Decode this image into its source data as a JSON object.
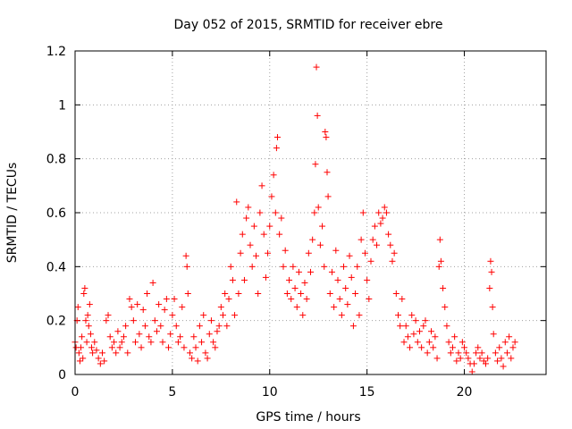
{
  "chart_data": {
    "type": "scatter",
    "title": "Day 052 of 2015, SRMTID for receiver ebre",
    "xlabel": "GPS time / hours",
    "ylabel": "SRMTID / TECUs",
    "xlim": [
      0,
      24.2
    ],
    "ylim": [
      0,
      1.2
    ],
    "xticks": [
      0,
      5,
      10,
      15,
      20
    ],
    "xtick_labels": [
      "0",
      "5",
      "10",
      "15",
      "20"
    ],
    "yticks": [
      0,
      0.2,
      0.4,
      0.6,
      0.8,
      1.0,
      1.2
    ],
    "ytick_labels": [
      "0",
      "0.2",
      "0.4",
      "0.6",
      "0.8",
      "1",
      "1.2"
    ],
    "grid": true,
    "marker": "plus",
    "marker_color": "#ff0000",
    "series": [
      {
        "name": "SRMTID",
        "points": [
          [
            0.0,
            0.12
          ],
          [
            0.05,
            0.1
          ],
          [
            0.1,
            0.2
          ],
          [
            0.15,
            0.25
          ],
          [
            0.2,
            0.08
          ],
          [
            0.25,
            0.05
          ],
          [
            0.3,
            0.1
          ],
          [
            0.35,
            0.14
          ],
          [
            0.4,
            0.06
          ],
          [
            0.45,
            0.3
          ],
          [
            0.5,
            0.32
          ],
          [
            0.55,
            0.2
          ],
          [
            0.6,
            0.12
          ],
          [
            0.65,
            0.22
          ],
          [
            0.7,
            0.18
          ],
          [
            0.75,
            0.26
          ],
          [
            0.8,
            0.15
          ],
          [
            0.85,
            0.1
          ],
          [
            0.9,
            0.08
          ],
          [
            1.0,
            0.12
          ],
          [
            1.1,
            0.09
          ],
          [
            1.2,
            0.06
          ],
          [
            1.3,
            0.04
          ],
          [
            1.4,
            0.08
          ],
          [
            1.5,
            0.05
          ],
          [
            1.6,
            0.2
          ],
          [
            1.7,
            0.22
          ],
          [
            1.8,
            0.14
          ],
          [
            1.9,
            0.1
          ],
          [
            2.0,
            0.12
          ],
          [
            2.1,
            0.08
          ],
          [
            2.2,
            0.16
          ],
          [
            2.3,
            0.1
          ],
          [
            2.4,
            0.12
          ],
          [
            2.5,
            0.14
          ],
          [
            2.6,
            0.18
          ],
          [
            2.7,
            0.08
          ],
          [
            2.8,
            0.28
          ],
          [
            2.9,
            0.25
          ],
          [
            3.0,
            0.2
          ],
          [
            3.1,
            0.12
          ],
          [
            3.2,
            0.26
          ],
          [
            3.3,
            0.15
          ],
          [
            3.4,
            0.1
          ],
          [
            3.5,
            0.24
          ],
          [
            3.6,
            0.18
          ],
          [
            3.7,
            0.3
          ],
          [
            3.8,
            0.14
          ],
          [
            3.9,
            0.12
          ],
          [
            4.0,
            0.34
          ],
          [
            4.1,
            0.2
          ],
          [
            4.2,
            0.16
          ],
          [
            4.3,
            0.26
          ],
          [
            4.4,
            0.18
          ],
          [
            4.5,
            0.12
          ],
          [
            4.6,
            0.24
          ],
          [
            4.7,
            0.28
          ],
          [
            4.8,
            0.1
          ],
          [
            4.9,
            0.15
          ],
          [
            5.0,
            0.22
          ],
          [
            5.1,
            0.28
          ],
          [
            5.2,
            0.18
          ],
          [
            5.3,
            0.12
          ],
          [
            5.4,
            0.14
          ],
          [
            5.5,
            0.25
          ],
          [
            5.6,
            0.1
          ],
          [
            5.7,
            0.44
          ],
          [
            5.75,
            0.4
          ],
          [
            5.8,
            0.3
          ],
          [
            5.9,
            0.08
          ],
          [
            6.0,
            0.06
          ],
          [
            6.1,
            0.14
          ],
          [
            6.2,
            0.1
          ],
          [
            6.3,
            0.05
          ],
          [
            6.4,
            0.18
          ],
          [
            6.5,
            0.12
          ],
          [
            6.6,
            0.22
          ],
          [
            6.7,
            0.08
          ],
          [
            6.8,
            0.06
          ],
          [
            6.9,
            0.15
          ],
          [
            7.0,
            0.2
          ],
          [
            7.1,
            0.12
          ],
          [
            7.2,
            0.1
          ],
          [
            7.3,
            0.16
          ],
          [
            7.4,
            0.18
          ],
          [
            7.5,
            0.25
          ],
          [
            7.6,
            0.22
          ],
          [
            7.7,
            0.3
          ],
          [
            7.8,
            0.18
          ],
          [
            7.9,
            0.28
          ],
          [
            8.0,
            0.4
          ],
          [
            8.1,
            0.35
          ],
          [
            8.2,
            0.22
          ],
          [
            8.3,
            0.64
          ],
          [
            8.4,
            0.3
          ],
          [
            8.5,
            0.45
          ],
          [
            8.6,
            0.52
          ],
          [
            8.7,
            0.35
          ],
          [
            8.8,
            0.58
          ],
          [
            8.9,
            0.62
          ],
          [
            9.0,
            0.48
          ],
          [
            9.1,
            0.4
          ],
          [
            9.2,
            0.55
          ],
          [
            9.3,
            0.44
          ],
          [
            9.4,
            0.3
          ],
          [
            9.5,
            0.6
          ],
          [
            9.6,
            0.7
          ],
          [
            9.7,
            0.52
          ],
          [
            9.8,
            0.36
          ],
          [
            9.9,
            0.45
          ],
          [
            10.0,
            0.55
          ],
          [
            10.1,
            0.66
          ],
          [
            10.2,
            0.74
          ],
          [
            10.3,
            0.6
          ],
          [
            10.35,
            0.84
          ],
          [
            10.4,
            0.88
          ],
          [
            10.5,
            0.52
          ],
          [
            10.6,
            0.58
          ],
          [
            10.7,
            0.4
          ],
          [
            10.8,
            0.46
          ],
          [
            10.9,
            0.3
          ],
          [
            11.0,
            0.35
          ],
          [
            11.1,
            0.28
          ],
          [
            11.2,
            0.4
          ],
          [
            11.3,
            0.32
          ],
          [
            11.4,
            0.25
          ],
          [
            11.5,
            0.38
          ],
          [
            11.6,
            0.3
          ],
          [
            11.7,
            0.22
          ],
          [
            11.8,
            0.34
          ],
          [
            11.9,
            0.28
          ],
          [
            12.0,
            0.45
          ],
          [
            12.1,
            0.38
          ],
          [
            12.2,
            0.5
          ],
          [
            12.3,
            0.6
          ],
          [
            12.35,
            0.78
          ],
          [
            12.4,
            1.14
          ],
          [
            12.45,
            0.96
          ],
          [
            12.5,
            0.62
          ],
          [
            12.6,
            0.48
          ],
          [
            12.7,
            0.55
          ],
          [
            12.8,
            0.4
          ],
          [
            12.85,
            0.9
          ],
          [
            12.9,
            0.88
          ],
          [
            12.95,
            0.75
          ],
          [
            13.0,
            0.66
          ],
          [
            13.1,
            0.3
          ],
          [
            13.2,
            0.38
          ],
          [
            13.3,
            0.25
          ],
          [
            13.4,
            0.46
          ],
          [
            13.5,
            0.35
          ],
          [
            13.6,
            0.28
          ],
          [
            13.7,
            0.22
          ],
          [
            13.8,
            0.4
          ],
          [
            13.9,
            0.32
          ],
          [
            14.0,
            0.26
          ],
          [
            14.1,
            0.44
          ],
          [
            14.2,
            0.36
          ],
          [
            14.3,
            0.18
          ],
          [
            14.4,
            0.3
          ],
          [
            14.5,
            0.4
          ],
          [
            14.6,
            0.22
          ],
          [
            14.7,
            0.5
          ],
          [
            14.8,
            0.6
          ],
          [
            14.9,
            0.45
          ],
          [
            15.0,
            0.35
          ],
          [
            15.1,
            0.28
          ],
          [
            15.2,
            0.42
          ],
          [
            15.3,
            0.5
          ],
          [
            15.4,
            0.55
          ],
          [
            15.5,
            0.48
          ],
          [
            15.6,
            0.6
          ],
          [
            15.7,
            0.56
          ],
          [
            15.8,
            0.58
          ],
          [
            15.9,
            0.62
          ],
          [
            16.0,
            0.6
          ],
          [
            16.1,
            0.52
          ],
          [
            16.2,
            0.48
          ],
          [
            16.3,
            0.42
          ],
          [
            16.4,
            0.45
          ],
          [
            16.5,
            0.3
          ],
          [
            16.6,
            0.22
          ],
          [
            16.7,
            0.18
          ],
          [
            16.8,
            0.28
          ],
          [
            16.9,
            0.12
          ],
          [
            17.0,
            0.18
          ],
          [
            17.1,
            0.14
          ],
          [
            17.2,
            0.1
          ],
          [
            17.3,
            0.22
          ],
          [
            17.4,
            0.15
          ],
          [
            17.5,
            0.2
          ],
          [
            17.6,
            0.12
          ],
          [
            17.7,
            0.16
          ],
          [
            17.8,
            0.1
          ],
          [
            17.9,
            0.18
          ],
          [
            18.0,
            0.2
          ],
          [
            18.1,
            0.08
          ],
          [
            18.2,
            0.12
          ],
          [
            18.3,
            0.16
          ],
          [
            18.4,
            0.1
          ],
          [
            18.5,
            0.14
          ],
          [
            18.6,
            0.06
          ],
          [
            18.7,
            0.4
          ],
          [
            18.75,
            0.5
          ],
          [
            18.8,
            0.42
          ],
          [
            18.9,
            0.32
          ],
          [
            19.0,
            0.25
          ],
          [
            19.1,
            0.18
          ],
          [
            19.2,
            0.12
          ],
          [
            19.3,
            0.08
          ],
          [
            19.4,
            0.1
          ],
          [
            19.5,
            0.14
          ],
          [
            19.6,
            0.05
          ],
          [
            19.7,
            0.08
          ],
          [
            19.8,
            0.06
          ],
          [
            19.9,
            0.12
          ],
          [
            20.0,
            0.1
          ],
          [
            20.1,
            0.08
          ],
          [
            20.2,
            0.06
          ],
          [
            20.3,
            0.04
          ],
          [
            20.4,
            0.01
          ],
          [
            20.5,
            0.04
          ],
          [
            20.6,
            0.08
          ],
          [
            20.7,
            0.1
          ],
          [
            20.8,
            0.06
          ],
          [
            20.9,
            0.08
          ],
          [
            21.0,
            0.05
          ],
          [
            21.1,
            0.04
          ],
          [
            21.2,
            0.06
          ],
          [
            21.3,
            0.32
          ],
          [
            21.35,
            0.42
          ],
          [
            21.4,
            0.38
          ],
          [
            21.45,
            0.25
          ],
          [
            21.5,
            0.15
          ],
          [
            21.6,
            0.08
          ],
          [
            21.7,
            0.05
          ],
          [
            21.8,
            0.1
          ],
          [
            21.9,
            0.06
          ],
          [
            22.0,
            0.03
          ],
          [
            22.1,
            0.12
          ],
          [
            22.2,
            0.08
          ],
          [
            22.3,
            0.14
          ],
          [
            22.4,
            0.06
          ],
          [
            22.5,
            0.1
          ],
          [
            22.6,
            0.12
          ]
        ]
      }
    ]
  }
}
